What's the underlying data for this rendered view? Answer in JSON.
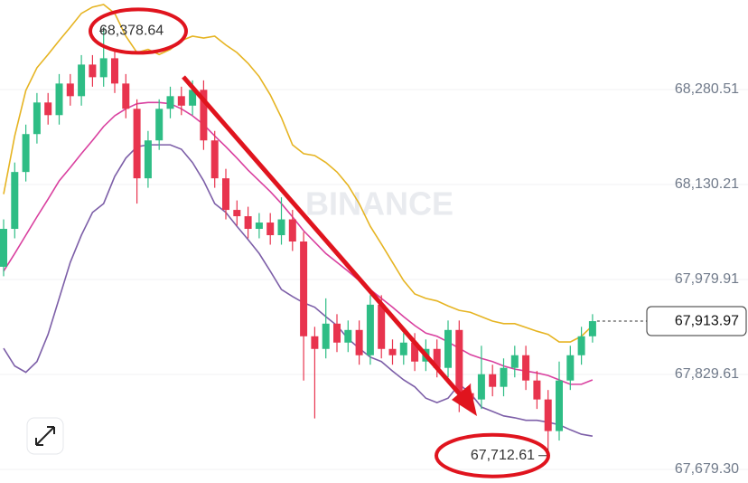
{
  "chart_data": {
    "type": "candlestick",
    "watermark": "BINANCE",
    "ylim": [
      67657.8,
      68422.2
    ],
    "yticks": [
      {
        "value": 68280.51,
        "label": "68,280.51"
      },
      {
        "value": 68130.21,
        "label": "68,130.21"
      },
      {
        "value": 67979.91,
        "label": "67,979.91"
      },
      {
        "value": 67829.61,
        "label": "67,829.61"
      },
      {
        "value": 67679.3,
        "label": "67,679.30"
      }
    ],
    "grid": true,
    "up_color": "#2ebd85",
    "down_color": "#e8344e",
    "open": [
      68000,
      68060,
      68150,
      68210,
      68260,
      68240,
      68290,
      68270,
      68320,
      68300,
      68330,
      68290,
      68250,
      68140,
      68200,
      68250,
      68270,
      68255,
      68280,
      68200,
      68140,
      68090,
      68080,
      68060,
      68070,
      68050,
      68075,
      68040,
      67890,
      67870,
      67910,
      67880,
      67900,
      67860,
      67940,
      67870,
      67860,
      67880,
      67850,
      67870,
      67840,
      67900,
      67800,
      67790,
      67830,
      67810,
      67840,
      67860,
      67820,
      67790,
      67740,
      67820,
      67860,
      67890
    ],
    "high": [
      68075,
      68165,
      68225,
      68275,
      68275,
      68305,
      68305,
      68335,
      68335,
      68378.64,
      68345,
      68305,
      68265,
      68215,
      68265,
      68285,
      68285,
      68295,
      68295,
      68215,
      68155,
      68105,
      68095,
      68085,
      68085,
      68110,
      68090,
      68055,
      67905,
      67950,
      67925,
      67915,
      67915,
      67955,
      67955,
      67885,
      67895,
      67895,
      67885,
      67885,
      67915,
      67915,
      67815,
      67875,
      67845,
      67855,
      67875,
      67875,
      67835,
      67805,
      67850,
      67875,
      67905,
      67925
    ],
    "low": [
      67985,
      68045,
      68135,
      68195,
      68225,
      68225,
      68255,
      68255,
      68285,
      68285,
      68275,
      68235,
      68100,
      68125,
      68185,
      68235,
      68240,
      68240,
      68185,
      68125,
      68075,
      68065,
      68045,
      68045,
      68035,
      68035,
      68025,
      67820,
      67760,
      67855,
      67865,
      67865,
      67845,
      67845,
      67855,
      67845,
      67845,
      67835,
      67835,
      67825,
      67825,
      67770,
      67775,
      67775,
      67795,
      67795,
      67825,
      67805,
      67775,
      67712.61,
      67725,
      67805,
      67845,
      67880
    ],
    "close": [
      68060,
      68150,
      68210,
      68260,
      68240,
      68290,
      68270,
      68320,
      68300,
      68330,
      68290,
      68250,
      68140,
      68200,
      68250,
      68270,
      68255,
      68280,
      68200,
      68140,
      68090,
      68080,
      68060,
      68070,
      68050,
      68075,
      68040,
      67890,
      67870,
      67910,
      67880,
      67900,
      67860,
      67940,
      67870,
      67860,
      67880,
      67850,
      67870,
      67840,
      67900,
      67800,
      67790,
      67830,
      67810,
      67840,
      67860,
      67820,
      67790,
      67740,
      67820,
      67860,
      67890,
      67913.97
    ],
    "series": [
      {
        "color": "#e6b422",
        "values": [
          68115,
          68207,
          68279,
          68315,
          68336,
          68358,
          68379,
          68401,
          68411,
          68415,
          68401,
          68365,
          68339,
          68344,
          68336,
          68344,
          68358,
          68365,
          68362,
          68365,
          68351,
          68339,
          68322,
          68301,
          68272,
          68236,
          68193,
          68179,
          68176,
          68165,
          68150,
          68129,
          68100,
          68064,
          68036,
          68007,
          67978,
          67957,
          67950,
          67946,
          67938,
          67931,
          67928,
          67921,
          67914,
          67910,
          67910,
          67904,
          67898,
          67893,
          67881,
          67881,
          67890,
          67907
        ]
      },
      {
        "color": "#d9409f",
        "values": [
          67993,
          68021,
          68050,
          68079,
          68107,
          68136,
          68157,
          68179,
          68200,
          68222,
          68239,
          68250,
          68258,
          68260,
          68260,
          68258,
          68250,
          68239,
          68225,
          68207,
          68190,
          68172,
          68153,
          68136,
          68119,
          68100,
          68079,
          68057,
          68039,
          68021,
          68007,
          67993,
          67978,
          67964,
          67950,
          67936,
          67921,
          67907,
          67895,
          67890,
          67881,
          67871,
          67861,
          67855,
          67850,
          67843,
          67838,
          67835,
          67832,
          67828,
          67821,
          67814,
          67814,
          67821
        ]
      },
      {
        "color": "#7d5fa8",
        "values": [
          67871,
          67843,
          67833,
          67850,
          67893,
          67950,
          68007,
          68050,
          68086,
          68100,
          68143,
          68172,
          68190,
          68193,
          68193,
          68193,
          68186,
          68165,
          68136,
          68100,
          68086,
          68064,
          68043,
          68021,
          67993,
          67964,
          67953,
          67943,
          67936,
          67921,
          67907,
          67886,
          67871,
          67857,
          67850,
          67835,
          67821,
          67810,
          67792,
          67785,
          67792,
          67814,
          67800,
          67778,
          67771,
          67764,
          67761,
          67757,
          67757,
          67754,
          67750,
          67742,
          67735,
          67732
        ]
      }
    ],
    "annotations": [
      {
        "value": 68378.64,
        "label": "68,378.64"
      },
      {
        "value": 67712.61,
        "label": "67,712.61"
      }
    ],
    "last_price": {
      "value": 67913.97,
      "label": "67,913.97"
    }
  }
}
